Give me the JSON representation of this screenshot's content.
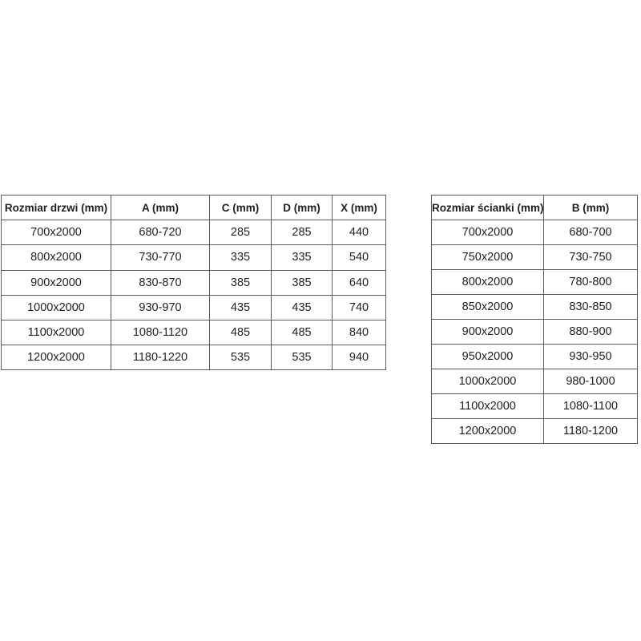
{
  "colors": {
    "background": "#ffffff",
    "table_border": "#5a5a5a",
    "text": "#1f1f1f"
  },
  "tables": {
    "doors": {
      "headers": [
        "Rozmiar drzwi (mm)",
        "A (mm)",
        "C (mm)",
        "D (mm)",
        "X (mm)"
      ],
      "rows": [
        [
          "700x2000",
          "680-720",
          "285",
          "285",
          "440"
        ],
        [
          "800x2000",
          "730-770",
          "335",
          "335",
          "540"
        ],
        [
          "900x2000",
          "830-870",
          "385",
          "385",
          "640"
        ],
        [
          "1000x2000",
          "930-970",
          "435",
          "435",
          "740"
        ],
        [
          "1100x2000",
          "1080-1120",
          "485",
          "485",
          "840"
        ],
        [
          "1200x2000",
          "1180-1220",
          "535",
          "535",
          "940"
        ]
      ]
    },
    "walls": {
      "headers": [
        "Rozmiar ścianki (mm)",
        "B (mm)"
      ],
      "rows": [
        [
          "700x2000",
          "680-700"
        ],
        [
          "750x2000",
          "730-750"
        ],
        [
          "800x2000",
          "780-800"
        ],
        [
          "850x2000",
          "830-850"
        ],
        [
          "900x2000",
          "880-900"
        ],
        [
          "950x2000",
          "930-950"
        ],
        [
          "1000x2000",
          "980-1000"
        ],
        [
          "1100x2000",
          "1080-1100"
        ],
        [
          "1200x2000",
          "1180-1200"
        ]
      ]
    }
  }
}
